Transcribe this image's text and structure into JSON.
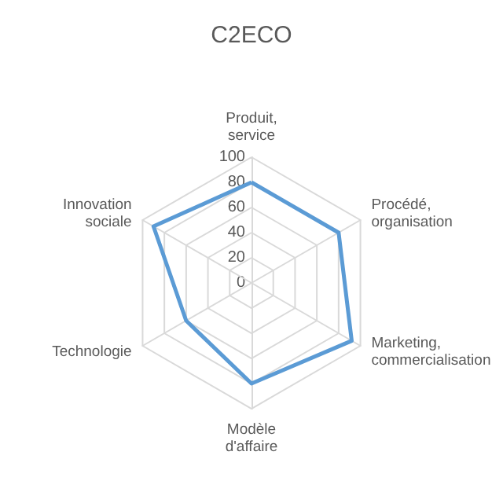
{
  "chart_data": {
    "type": "radar",
    "title": "C2ECO",
    "categories": [
      "Produit, service",
      "Procédé, organisation",
      "Marketing, commercialisation",
      "Modèle d'affaire",
      "Technologie",
      "Innovation sociale"
    ],
    "series": [
      {
        "color": "#5b9bd5",
        "values": [
          80,
          80,
          92,
          80,
          60,
          90
        ]
      }
    ],
    "ylim": [
      0,
      100
    ],
    "yticks": [
      0,
      20,
      40,
      60,
      80,
      100
    ],
    "grid": true,
    "marker": "none"
  }
}
